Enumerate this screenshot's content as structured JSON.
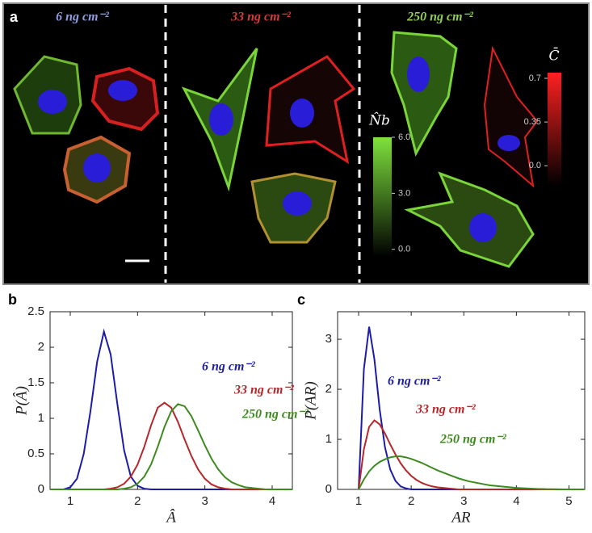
{
  "figure_a": {
    "panel_label": "a",
    "groups": [
      {
        "label": "6 ng cm⁻²",
        "color": "#8f9fe0"
      },
      {
        "label": "33 ng cm⁻²",
        "color": "#d83a3a"
      },
      {
        "label": "250 ng cm⁻²",
        "color": "#92d050"
      }
    ],
    "colorbars": [
      {
        "label": "N̂b",
        "colors": [
          "#000000",
          "#7ee23c"
        ],
        "lim": [
          -0.4,
          6.0
        ],
        "ticks": [
          {
            "value": 6,
            "label": "6.0"
          },
          {
            "value": 3,
            "label": "3.0"
          },
          {
            "value": 0,
            "label": "0.0"
          }
        ]
      },
      {
        "label": "C̄",
        "colors": [
          "#000000",
          "#ff2020"
        ],
        "lim": [
          -0.16,
          0.745
        ],
        "ticks": [
          0.7,
          0.35,
          {
            "value": 0,
            "label": "0.0"
          }
        ]
      }
    ]
  },
  "chart_data": [
    {
      "type": "line",
      "panel_label": "b",
      "xlabel": "Â",
      "ylabel": "P(Â)",
      "x": [
        0.7,
        0.8,
        0.9,
        1.0,
        1.1,
        1.2,
        1.3,
        1.4,
        1.5,
        1.6,
        1.7,
        1.8,
        1.9,
        2.0,
        2.1,
        2.2,
        2.3,
        2.4,
        2.5,
        2.6,
        2.7,
        2.8,
        2.9,
        3.0,
        3.1,
        3.2,
        3.3,
        3.4,
        3.5,
        3.6,
        3.7,
        3.8,
        3.9,
        4.0,
        4.1,
        4.2,
        4.3
      ],
      "series": [
        {
          "name": "6 ng cm⁻²",
          "color": "#1c1ca8",
          "values": [
            0,
            0,
            0,
            0.03,
            0.15,
            0.5,
            1.1,
            1.8,
            2.22,
            1.9,
            1.2,
            0.55,
            0.18,
            0.05,
            0.01,
            0,
            0,
            0,
            0,
            0,
            0,
            0,
            0,
            0,
            0,
            0,
            0,
            0,
            0,
            0,
            0,
            0,
            0,
            0,
            0,
            0,
            0
          ]
        },
        {
          "name": "33 ng cm⁻²",
          "color": "#b8262a",
          "values": [
            0,
            0,
            0,
            0,
            0,
            0,
            0,
            0,
            0,
            0.01,
            0.03,
            0.08,
            0.18,
            0.35,
            0.6,
            0.9,
            1.15,
            1.22,
            1.15,
            0.95,
            0.7,
            0.47,
            0.28,
            0.15,
            0.07,
            0.03,
            0.01,
            0,
            0,
            0,
            0,
            0,
            0,
            0,
            0,
            0,
            0
          ]
        },
        {
          "name": "250 ng cm⁻²",
          "color": "#3e8a1e",
          "values": [
            0,
            0,
            0,
            0,
            0,
            0,
            0,
            0,
            0,
            0,
            0,
            0.01,
            0.03,
            0.08,
            0.18,
            0.35,
            0.6,
            0.88,
            1.1,
            1.2,
            1.17,
            1.03,
            0.83,
            0.62,
            0.43,
            0.28,
            0.17,
            0.1,
            0.06,
            0.03,
            0.02,
            0.01,
            0,
            0,
            0,
            0,
            0
          ]
        }
      ],
      "xlim": [
        0.7,
        4.3
      ],
      "xticks": [
        1,
        2,
        3,
        4
      ],
      "ylim": [
        0,
        2.5
      ],
      "yticks": [
        0,
        0.5,
        1,
        1.5,
        2,
        2.5
      ]
    },
    {
      "type": "line",
      "panel_label": "c",
      "xlabel": "AR",
      "ylabel": "P(AR)",
      "x": [
        1.0,
        1.1,
        1.2,
        1.3,
        1.4,
        1.5,
        1.6,
        1.7,
        1.8,
        1.9,
        2.0,
        2.1,
        2.2,
        2.3,
        2.4,
        2.5,
        2.6,
        2.7,
        2.8,
        2.9,
        3.0,
        3.1,
        3.2,
        3.3,
        3.4,
        3.5,
        3.6,
        3.7,
        3.8,
        3.9,
        4.0,
        4.1,
        4.2,
        4.3,
        4.4,
        4.5,
        4.6,
        4.7,
        4.8,
        4.9,
        5.0,
        5.1,
        5.2,
        5.3
      ],
      "series": [
        {
          "name": "6 ng cm⁻²",
          "color": "#1c1ca8",
          "values": [
            0,
            2.4,
            3.25,
            2.6,
            1.6,
            0.85,
            0.4,
            0.17,
            0.06,
            0.02,
            0,
            0,
            0,
            0,
            0,
            0,
            0,
            0,
            0,
            0,
            0,
            0,
            0,
            0,
            0,
            0,
            0,
            0,
            0,
            0,
            0,
            0,
            0,
            0,
            0,
            0,
            0,
            0,
            0,
            0,
            0,
            0,
            0,
            0
          ]
        },
        {
          "name": "33 ng cm⁻²",
          "color": "#b8262a",
          "values": [
            0,
            0.8,
            1.25,
            1.38,
            1.3,
            1.12,
            0.9,
            0.7,
            0.52,
            0.38,
            0.27,
            0.19,
            0.13,
            0.09,
            0.06,
            0.04,
            0.03,
            0.02,
            0.01,
            0,
            0,
            0,
            0,
            0,
            0,
            0,
            0,
            0,
            0,
            0,
            0,
            0,
            0,
            0,
            0,
            0,
            0,
            0,
            0,
            0,
            0,
            0,
            0,
            0
          ]
        },
        {
          "name": "250 ng cm⁻²",
          "color": "#3e8a1e",
          "values": [
            0,
            0.2,
            0.36,
            0.47,
            0.55,
            0.6,
            0.64,
            0.66,
            0.66,
            0.64,
            0.61,
            0.57,
            0.53,
            0.48,
            0.43,
            0.38,
            0.34,
            0.3,
            0.26,
            0.22,
            0.19,
            0.16,
            0.14,
            0.12,
            0.1,
            0.08,
            0.07,
            0.06,
            0.05,
            0.04,
            0.03,
            0.025,
            0.02,
            0.015,
            0.01,
            0.008,
            0.005,
            0.003,
            0.002,
            0.001,
            0,
            0,
            0,
            0
          ]
        }
      ],
      "xlim": [
        0.6,
        5.3
      ],
      "xticks": [
        1,
        2,
        3,
        4,
        5
      ],
      "ylim": [
        0,
        3.55
      ],
      "yticks": [
        0,
        1,
        2,
        3
      ]
    }
  ]
}
